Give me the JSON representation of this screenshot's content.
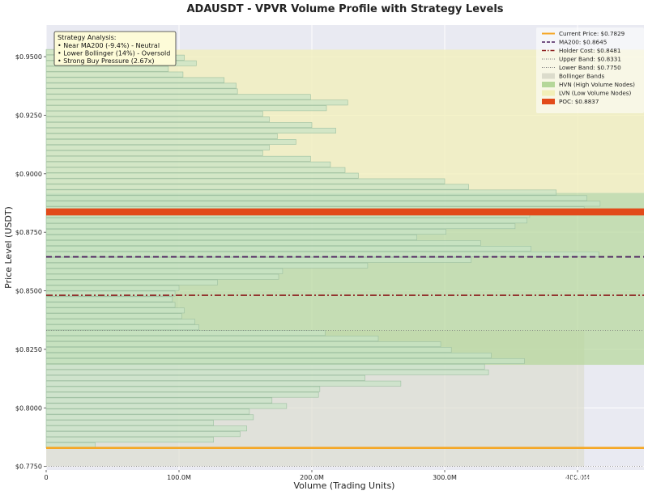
{
  "chart_data": {
    "type": "bar",
    "orientation": "horizontal",
    "title": "ADAUSDT - VPVR Volume Profile with Strategy Levels",
    "xlabel": "Volume (Trading Units)",
    "ylabel": "Price Level (USDT)",
    "xlim": [
      0,
      450
    ],
    "ylim": [
      0.7735,
      0.9635
    ],
    "x_ticks": [
      0,
      100,
      200,
      300,
      400
    ],
    "x_tick_labels": [
      "0",
      "100.0M",
      "200.0M",
      "300.0M",
      "400.0M"
    ],
    "y_ticks": [
      0.775,
      0.8,
      0.825,
      0.85,
      0.875,
      0.9,
      0.925,
      0.95
    ],
    "y_tick_labels": [
      "$0.7750",
      "$0.8000",
      "$0.8250",
      "$0.8500",
      "$0.8750",
      "$0.9000",
      "$0.9250",
      "$0.9500"
    ],
    "grid": true,
    "legend_placement": "top-right",
    "series": [
      {
        "name": "Volume",
        "price_levels": [
          0.784,
          0.7864,
          0.7888,
          0.7912,
          0.7936,
          0.796,
          0.7984,
          0.8008,
          0.8032,
          0.8056,
          0.808,
          0.8104,
          0.8128,
          0.8152,
          0.8176,
          0.82,
          0.8224,
          0.8248,
          0.8272,
          0.8296,
          0.832,
          0.8344,
          0.8368,
          0.8392,
          0.8416,
          0.844,
          0.8464,
          0.8488,
          0.8512,
          0.8536,
          0.856,
          0.8584,
          0.8608,
          0.8632,
          0.8656,
          0.868,
          0.8704,
          0.8728,
          0.8752,
          0.8776,
          0.88,
          0.8824,
          0.8848,
          0.8872,
          0.8896,
          0.892,
          0.8944,
          0.8968,
          0.8992,
          0.9016,
          0.904,
          0.9064,
          0.9088,
          0.9112,
          0.9136,
          0.916,
          0.9184,
          0.9208,
          0.9232,
          0.9256,
          0.928,
          0.9304,
          0.9328,
          0.9352,
          0.9376,
          0.94,
          0.9424,
          0.9448,
          0.9472,
          0.9496,
          0.952
        ],
        "values": [
          37,
          126,
          146,
          151,
          126,
          156,
          153,
          181,
          170,
          205,
          206,
          267,
          240,
          333,
          330,
          360,
          335,
          305,
          297,
          250,
          210,
          115,
          112,
          102,
          104,
          97,
          95,
          97,
          100,
          129,
          175,
          178,
          242,
          320,
          416,
          365,
          327,
          279,
          301,
          353,
          362,
          364,
          405,
          417,
          407,
          384,
          318,
          300,
          235,
          225,
          214,
          199,
          163,
          168,
          188,
          174,
          218,
          200,
          168,
          163,
          211,
          227,
          199,
          144,
          143,
          134,
          103,
          92,
          113,
          104,
          64
        ]
      }
    ],
    "bollinger_band": [
      0.775,
      0.8331
    ],
    "hvn_zone": [
      0.8184,
      0.8918
    ],
    "lvn_zone": [
      0.8918,
      0.953
    ],
    "lines": {
      "current_price": 0.7829,
      "ma200": 0.8645,
      "holder_cost": 0.8481,
      "upper_band": 0.8331,
      "lower_band": 0.775,
      "poc": 0.8837
    },
    "legend": [
      {
        "label": "Current Price: $0.7829",
        "kind": "line-solid",
        "color": "#f5a623"
      },
      {
        "label": "MA200: $0.8645",
        "kind": "line-dash",
        "color": "#4b1f5e"
      },
      {
        "label": "Holder Cost: $0.8481",
        "kind": "line-dashdot",
        "color": "#8b1a1a"
      },
      {
        "label": "Upper Band: $0.8331",
        "kind": "line-dot",
        "color": "#777777"
      },
      {
        "label": "Lower Band: $0.7750",
        "kind": "line-dot",
        "color": "#777777"
      },
      {
        "label": "Bollinger Bands",
        "kind": "patch",
        "color": "#dcdccc"
      },
      {
        "label": "HVN (High Volume Nodes)",
        "kind": "patch",
        "color": "#b5d79a"
      },
      {
        "label": "LVN (Low Volume Nodes)",
        "kind": "patch",
        "color": "#f2efb8"
      },
      {
        "label": "POC: $0.8837",
        "kind": "patch",
        "color": "#e24a1a"
      }
    ],
    "annotation": {
      "lines": [
        "Strategy Analysis:",
        "• Near MA200 (-9.4%) - Neutral",
        "• Lower Bollinger (14%) - Oversold",
        "• Strong Buy Pressure (2.67x)"
      ]
    },
    "watermark": "@AI看盘",
    "colors": {
      "plot_bg": "#e9eaf2",
      "bar_fill": "#c7e3c6",
      "bar_edge": "#9cbfa0",
      "lvn": "#f2efb8",
      "hvn": "#b5d79a",
      "bollinger": "#dcdccc",
      "current_price": "#f5a623",
      "ma200": "#4b1f5e",
      "holder_cost": "#8b1a1a",
      "band_line": "#777777",
      "poc": "#e24a1a",
      "annotation_bg": "#fdfbd8"
    }
  }
}
